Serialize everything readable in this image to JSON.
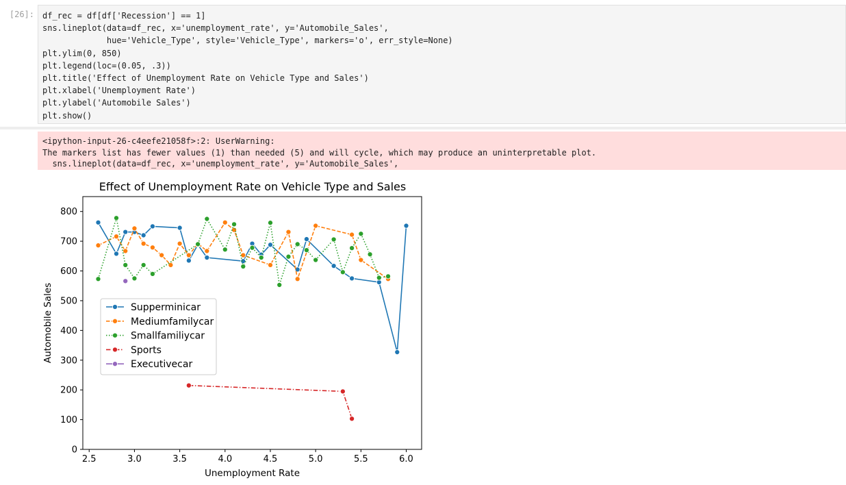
{
  "cell": {
    "prompt": "[26]:",
    "code_lines": [
      "df_rec = df[df['Recession'] == 1]",
      "sns.lineplot(data=df_rec, x='unemployment_rate', y='Automobile_Sales',",
      "             hue='Vehicle_Type', style='Vehicle_Type', markers='o', err_style=None)",
      "plt.ylim(0, 850)",
      "plt.legend(loc=(0.05, .3))",
      "plt.title('Effect of Unemployment Rate on Vehicle Type and Sales')",
      "plt.xlabel('Unemployment Rate')",
      "plt.ylabel('Automobile Sales')",
      "plt.show()"
    ]
  },
  "warning": {
    "lines": [
      "<ipython-input-26-c4eefe21058f>:2: UserWarning:",
      "The markers list has fewer values (1) than needed (5) and will cycle, which may produce an uninterpretable plot.",
      "  sns.lineplot(data=df_rec, x='unemployment_rate', y='Automobile_Sales',"
    ]
  },
  "chart_data": {
    "type": "line",
    "title": "Effect of Unemployment Rate on Vehicle Type and Sales",
    "xlabel": "Unemployment Rate",
    "ylabel": "Automobile Sales",
    "xlim": [
      2.43,
      6.17
    ],
    "ylim": [
      0,
      850
    ],
    "xticks": [
      2.5,
      3.0,
      3.5,
      4.0,
      4.5,
      5.0,
      5.5,
      6.0
    ],
    "xtick_labels": [
      "2.5",
      "3.0",
      "3.5",
      "4.0",
      "4.5",
      "5.0",
      "5.5",
      "6.0"
    ],
    "yticks": [
      0,
      100,
      200,
      300,
      400,
      500,
      600,
      700,
      800
    ],
    "ytick_labels": [
      "0",
      "100",
      "200",
      "300",
      "400",
      "500",
      "600",
      "700",
      "800"
    ],
    "grid": false,
    "legend_position": "center-left",
    "series": [
      {
        "name": "Supperminicar",
        "color": "#1f77b4",
        "dash": "solid",
        "points": [
          [
            2.6,
            763
          ],
          [
            2.8,
            658
          ],
          [
            2.9,
            731
          ],
          [
            3.0,
            731
          ],
          [
            3.1,
            720
          ],
          [
            3.2,
            750
          ],
          [
            3.5,
            745
          ],
          [
            3.6,
            635
          ],
          [
            3.7,
            688
          ],
          [
            3.8,
            645
          ],
          [
            4.2,
            633
          ],
          [
            4.3,
            692
          ],
          [
            4.4,
            655
          ],
          [
            4.5,
            688
          ],
          [
            4.8,
            605
          ],
          [
            4.9,
            707
          ],
          [
            5.2,
            617
          ],
          [
            5.4,
            575
          ],
          [
            5.7,
            562
          ],
          [
            5.9,
            327
          ],
          [
            6.0,
            752
          ]
        ]
      },
      {
        "name": "Mediumfamilycar",
        "color": "#ff7f0e",
        "dash": "dashed",
        "points": [
          [
            2.6,
            686
          ],
          [
            2.8,
            716
          ],
          [
            2.9,
            667
          ],
          [
            3.0,
            743
          ],
          [
            3.1,
            692
          ],
          [
            3.2,
            679
          ],
          [
            3.3,
            653
          ],
          [
            3.4,
            620
          ],
          [
            3.5,
            692
          ],
          [
            3.6,
            653
          ],
          [
            3.7,
            692
          ],
          [
            3.8,
            667
          ],
          [
            4.0,
            763
          ],
          [
            4.1,
            738
          ],
          [
            4.2,
            653
          ],
          [
            4.5,
            620
          ],
          [
            4.7,
            731
          ],
          [
            4.8,
            573
          ],
          [
            5.0,
            752
          ],
          [
            5.4,
            722
          ],
          [
            5.5,
            637
          ],
          [
            5.8,
            573
          ]
        ]
      },
      {
        "name": "Smallfamiliycar",
        "color": "#2ca02c",
        "dash": "dotted",
        "points": [
          [
            2.6,
            573
          ],
          [
            2.8,
            778
          ],
          [
            2.9,
            620
          ],
          [
            3.0,
            575
          ],
          [
            3.1,
            620
          ],
          [
            3.2,
            590
          ],
          [
            3.7,
            690
          ],
          [
            3.8,
            775
          ],
          [
            4.0,
            672
          ],
          [
            4.1,
            757
          ],
          [
            4.2,
            615
          ],
          [
            4.3,
            678
          ],
          [
            4.4,
            645
          ],
          [
            4.5,
            762
          ],
          [
            4.6,
            553
          ],
          [
            4.7,
            648
          ],
          [
            4.8,
            690
          ],
          [
            4.9,
            670
          ],
          [
            5.0,
            637
          ],
          [
            5.2,
            706
          ],
          [
            5.3,
            596
          ],
          [
            5.4,
            677
          ],
          [
            5.5,
            725
          ],
          [
            5.6,
            656
          ],
          [
            5.7,
            577
          ],
          [
            5.8,
            582
          ]
        ]
      },
      {
        "name": "Sports",
        "color": "#d62728",
        "dash": "dashdot",
        "points": [
          [
            3.6,
            215
          ],
          [
            5.3,
            195
          ],
          [
            5.4,
            103
          ]
        ]
      },
      {
        "name": "Executivecar",
        "color": "#9467bd",
        "dash": "solid",
        "points": [
          [
            2.9,
            566
          ]
        ]
      }
    ]
  }
}
